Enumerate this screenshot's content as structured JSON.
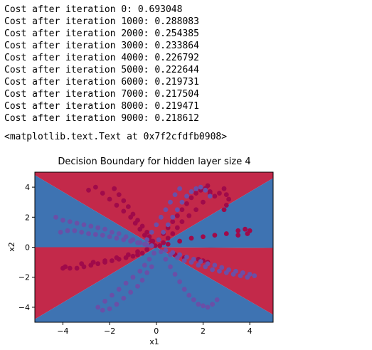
{
  "output_log": {
    "lines": [
      "Cost after iteration 0: 0.693048",
      "Cost after iteration 1000: 0.288083",
      "Cost after iteration 2000: 0.254385",
      "Cost after iteration 3000: 0.233864",
      "Cost after iteration 4000: 0.226792",
      "Cost after iteration 5000: 0.222644",
      "Cost after iteration 6000: 0.219731",
      "Cost after iteration 7000: 0.217504",
      "Cost after iteration 8000: 0.219471",
      "Cost after iteration 9000: 0.218612"
    ],
    "repr": "<matplotlib.text.Text at 0x7f2cfdfb0908>"
  },
  "chart_data": {
    "type": "scatter",
    "title": "Decision Boundary for hidden layer size 4",
    "xlabel": "x1",
    "ylabel": "x2",
    "xlim": [
      -5.2,
      5.0
    ],
    "ylim": [
      -5.0,
      5.0
    ],
    "xticks": [
      -4,
      -2,
      0,
      2,
      4
    ],
    "yticks": [
      -4,
      -2,
      0,
      2,
      4
    ],
    "xtick_labels": [
      "−4",
      "−2",
      "0",
      "2",
      "4"
    ],
    "ytick_labels": [
      "−4",
      "−2",
      "0",
      "2",
      "4"
    ],
    "grid": false,
    "colors": {
      "red_region": "#c3294a",
      "blue_region": "#3e73b2",
      "red_points": "#a00a4a",
      "blue_points": "#6a4fa7"
    },
    "decision_regions": {
      "red": [
        [
          [
            -5.2,
            4.8
          ],
          [
            -5.2,
            5.0
          ],
          [
            5.0,
            5.0
          ],
          [
            5.0,
            4.6
          ],
          [
            0,
            0
          ]
        ],
        [
          [
            -5.2,
            0.0
          ],
          [
            -5.2,
            -4.8
          ],
          [
            0,
            0
          ]
        ],
        [
          [
            0,
            0
          ],
          [
            5.0,
            -4.5
          ],
          [
            5.0,
            -0.05
          ]
        ]
      ],
      "blue": [
        [
          [
            -5.2,
            4.8
          ],
          [
            0,
            0
          ],
          [
            -5.2,
            0.0
          ]
        ],
        [
          [
            0,
            0
          ],
          [
            5.0,
            4.6
          ],
          [
            5.0,
            -0.05
          ]
        ],
        [
          [
            -5.2,
            -4.8
          ],
          [
            -5.2,
            -5.0
          ],
          [
            5.0,
            -5.0
          ],
          [
            5.0,
            -4.5
          ],
          [
            0,
            0
          ]
        ]
      ]
    },
    "series": [
      {
        "class": "red",
        "x": [
          -2.9,
          -2.6,
          -2.3,
          -2.0,
          -1.7,
          -1.4,
          -1.1,
          -0.9,
          -0.7,
          -0.5,
          -0.3,
          -0.2,
          -1.8,
          -1.6,
          -1.4,
          -1.2,
          -1.0,
          -0.8,
          -0.6,
          -0.4,
          -0.3,
          -0.15,
          -0.05,
          0.1,
          0.3,
          0.5,
          0.7,
          0.9,
          1.1,
          1.3,
          1.5,
          1.7,
          1.9,
          2.1,
          2.3,
          2.5,
          2.7,
          2.9,
          3.0,
          3.1,
          3.0,
          2.9,
          2.1,
          2.2,
          2.3,
          2.0,
          1.7,
          1.4,
          1.1,
          0.9,
          0.7,
          0.5,
          0.3,
          0.15,
          -0.6,
          -0.8,
          -1.0,
          -1.3,
          -1.6,
          -1.9,
          -2.2,
          -2.5,
          -2.8,
          -3.1,
          -3.4,
          -3.7,
          -3.9,
          -4.0,
          -3.2,
          -2.7,
          -2.2,
          -1.7,
          -1.2,
          -0.8,
          -0.4,
          0.5,
          1.0,
          1.5,
          2.0,
          2.5,
          3.0,
          3.5,
          3.8,
          4.0,
          3.9,
          3.5,
          2.0,
          2.2,
          1.8,
          1.2,
          0.8
        ],
        "y": [
          3.8,
          4.0,
          3.6,
          3.2,
          2.8,
          2.4,
          2.0,
          1.6,
          1.2,
          0.8,
          0.5,
          0.2,
          3.9,
          3.5,
          3.1,
          2.7,
          2.2,
          1.8,
          1.4,
          1.0,
          0.7,
          0.4,
          0.1,
          0.5,
          0.9,
          1.3,
          1.7,
          2.1,
          2.5,
          2.9,
          3.3,
          3.6,
          3.8,
          3.9,
          3.7,
          3.4,
          3.6,
          3.9,
          3.5,
          3.2,
          2.8,
          2.5,
          3.9,
          4.1,
          3.6,
          3.0,
          2.5,
          2.1,
          1.7,
          1.3,
          0.9,
          0.6,
          0.3,
          0.1,
          -0.4,
          -0.5,
          -0.6,
          -0.7,
          -0.8,
          -0.9,
          -1.0,
          -1.1,
          -1.2,
          -1.3,
          -1.4,
          -1.4,
          -1.3,
          -1.4,
          -1.1,
          -1.0,
          -0.9,
          -0.7,
          -0.5,
          -0.3,
          -0.15,
          0.2,
          0.4,
          0.6,
          0.7,
          0.8,
          0.9,
          1.1,
          1.2,
          1.1,
          0.9,
          0.8,
          -0.9,
          -1.0,
          -0.8,
          -0.7,
          -0.5
        ]
      },
      {
        "class": "blue",
        "x": [
          -4.3,
          -4.0,
          -3.7,
          -3.4,
          -3.1,
          -2.8,
          -2.5,
          -2.2,
          -1.9,
          -1.6,
          -1.3,
          -1.0,
          -0.7,
          -0.4,
          -4.1,
          -3.8,
          -3.5,
          -3.2,
          -2.9,
          -2.6,
          -2.3,
          -2.0,
          -1.7,
          -1.4,
          -1.1,
          -0.8,
          -0.5,
          -0.2,
          0.4,
          0.7,
          1.0,
          1.3,
          1.6,
          1.9,
          2.2,
          2.5,
          2.8,
          3.1,
          3.4,
          3.7,
          4.0,
          4.2,
          0.6,
          0.9,
          1.2,
          1.5,
          1.8,
          2.1,
          2.4,
          2.7,
          3.0,
          3.3,
          3.6,
          3.9,
          -2.5,
          -2.2,
          -1.9,
          -1.6,
          -1.3,
          -1.0,
          -0.7,
          -0.5,
          -0.3,
          -0.1,
          -2.3,
          -2.0,
          -1.7,
          -1.4,
          -1.1,
          -0.8,
          -0.6,
          -0.4,
          -0.2,
          0.2,
          0.4,
          0.6,
          0.8,
          1.0,
          1.2,
          1.4,
          1.6,
          1.8,
          2.0,
          2.2,
          2.4,
          2.6,
          0.1,
          0.3,
          0.5,
          0.7,
          0.9,
          1.1,
          1.3,
          1.5,
          1.7,
          1.9,
          2.1,
          2.3,
          1.0,
          0.8,
          0.6,
          0.4,
          0.2,
          0.0,
          -0.2,
          -0.4
        ],
        "y": [
          2.0,
          1.8,
          1.7,
          1.6,
          1.5,
          1.4,
          1.3,
          1.2,
          1.0,
          0.9,
          0.7,
          0.5,
          0.3,
          0.15,
          1.0,
          1.1,
          1.1,
          1.0,
          0.9,
          0.85,
          0.8,
          0.7,
          0.6,
          0.5,
          0.4,
          0.3,
          0.2,
          0.1,
          -0.2,
          -0.35,
          -0.5,
          -0.65,
          -0.8,
          -0.95,
          -1.1,
          -1.2,
          -1.35,
          -1.5,
          -1.6,
          -1.7,
          -1.8,
          -1.9,
          -0.5,
          -0.7,
          -0.9,
          -1.0,
          -1.2,
          -1.3,
          -1.5,
          -1.6,
          -1.7,
          -1.8,
          -1.9,
          -2.0,
          -4.0,
          -3.6,
          -3.2,
          -2.8,
          -2.4,
          -2.0,
          -1.6,
          -1.2,
          -0.8,
          -0.4,
          -4.2,
          -4.1,
          -3.8,
          -3.4,
          -3.0,
          -2.6,
          -2.2,
          -1.7,
          -1.3,
          -0.3,
          -0.8,
          -1.3,
          -1.8,
          -2.3,
          -2.8,
          -3.2,
          -3.5,
          -3.8,
          -3.9,
          -4.0,
          -3.8,
          -3.5,
          0.5,
          1.0,
          1.5,
          2.0,
          2.5,
          3.0,
          3.4,
          3.7,
          3.9,
          4.0,
          3.8,
          3.4,
          3.9,
          3.5,
          3.0,
          2.5,
          2.0,
          1.5,
          1.0,
          0.5
        ]
      }
    ]
  }
}
